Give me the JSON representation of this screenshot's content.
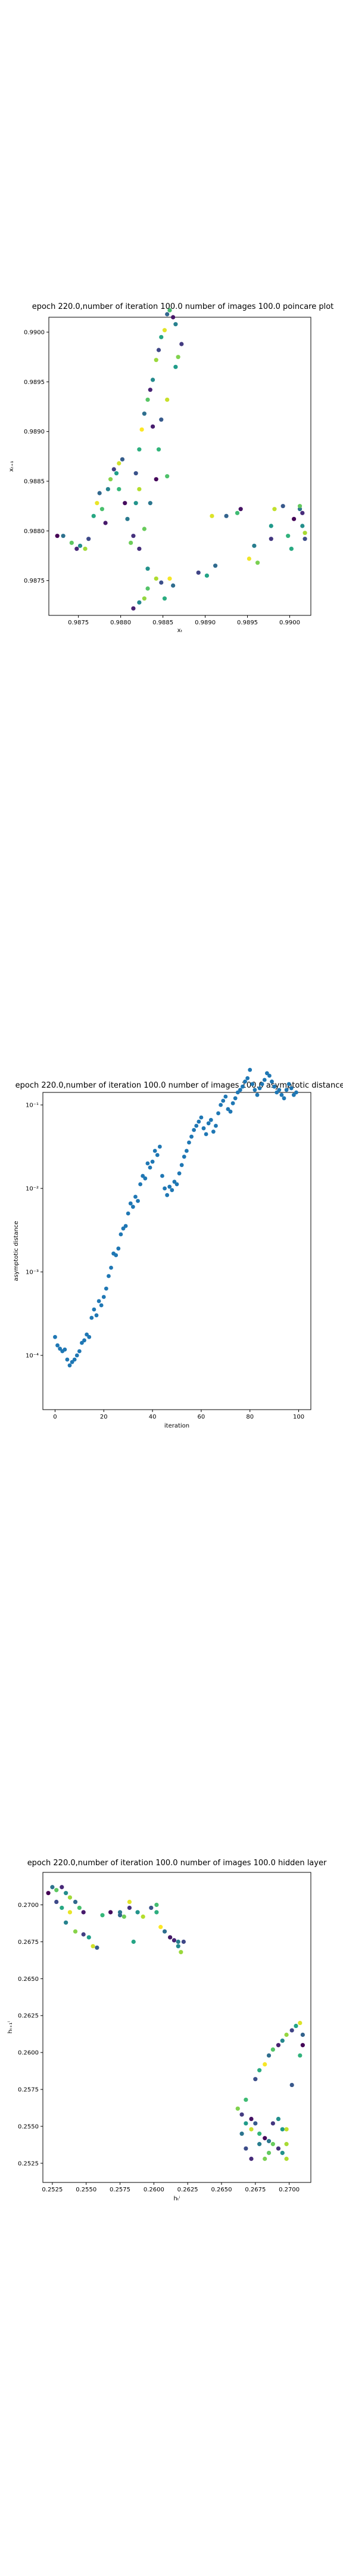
{
  "chart_data": [
    {
      "type": "scatter",
      "title": "epoch 220.0,number of iteration 100.0 number of images 100.0 poincare plot",
      "xlabel": "xₜ",
      "ylabel": "xₜ₊₁",
      "xlim": [
        0.98715,
        0.99025
      ],
      "ylim": [
        0.98715,
        0.99015
      ],
      "xticks": [
        "0.9875",
        "0.9880",
        "0.9885",
        "0.9890",
        "0.9895",
        "0.9900"
      ],
      "yticks": [
        "0.9875",
        "0.9880",
        "0.9885",
        "0.9890",
        "0.9895",
        "0.9900"
      ],
      "color_by": "iteration (viridis)",
      "points": [
        [
          0.98725,
          0.98795
        ],
        [
          0.98732,
          0.98795
        ],
        [
          0.98742,
          0.98788
        ],
        [
          0.98748,
          0.98782
        ],
        [
          0.98752,
          0.98785
        ],
        [
          0.98758,
          0.98782
        ],
        [
          0.98762,
          0.98792
        ],
        [
          0.98768,
          0.98815
        ],
        [
          0.98772,
          0.98828
        ],
        [
          0.98775,
          0.98838
        ],
        [
          0.98778,
          0.98822
        ],
        [
          0.98782,
          0.98808
        ],
        [
          0.98785,
          0.98842
        ],
        [
          0.98788,
          0.98852
        ],
        [
          0.98792,
          0.98862
        ],
        [
          0.98795,
          0.98858
        ],
        [
          0.98798,
          0.98868
        ],
        [
          0.98802,
          0.98872
        ],
        [
          0.98798,
          0.98842
        ],
        [
          0.98805,
          0.98828
        ],
        [
          0.98808,
          0.98812
        ],
        [
          0.98812,
          0.98788
        ],
        [
          0.98815,
          0.98795
        ],
        [
          0.98818,
          0.98828
        ],
        [
          0.98822,
          0.98842
        ],
        [
          0.98818,
          0.98858
        ],
        [
          0.98822,
          0.98882
        ],
        [
          0.98825,
          0.98902
        ],
        [
          0.98828,
          0.98918
        ],
        [
          0.98832,
          0.98932
        ],
        [
          0.98835,
          0.98942
        ],
        [
          0.98838,
          0.98952
        ],
        [
          0.98842,
          0.98972
        ],
        [
          0.98845,
          0.98982
        ],
        [
          0.98848,
          0.98995
        ],
        [
          0.98852,
          0.99002
        ],
        [
          0.98855,
          0.99018
        ],
        [
          0.98858,
          0.99022
        ],
        [
          0.98862,
          0.99015
        ],
        [
          0.98865,
          0.99008
        ],
        [
          0.98868,
          0.98975
        ],
        [
          0.98872,
          0.98988
        ],
        [
          0.98865,
          0.98965
        ],
        [
          0.98855,
          0.98932
        ],
        [
          0.98848,
          0.98912
        ],
        [
          0.98845,
          0.98882
        ],
        [
          0.98842,
          0.98852
        ],
        [
          0.98835,
          0.98828
        ],
        [
          0.98828,
          0.98802
        ],
        [
          0.98822,
          0.98782
        ],
        [
          0.98832,
          0.98762
        ],
        [
          0.98842,
          0.98752
        ],
        [
          0.98848,
          0.98748
        ],
        [
          0.98852,
          0.98732
        ],
        [
          0.98858,
          0.98752
        ],
        [
          0.98862,
          0.98745
        ],
        [
          0.98832,
          0.98742
        ],
        [
          0.98815,
          0.98722
        ],
        [
          0.98822,
          0.98728
        ],
        [
          0.98828,
          0.98732
        ],
        [
          0.98892,
          0.98758
        ],
        [
          0.98902,
          0.98755
        ],
        [
          0.98908,
          0.98815
        ],
        [
          0.98925,
          0.98815
        ],
        [
          0.98938,
          0.98818
        ],
        [
          0.98942,
          0.98822
        ],
        [
          0.98958,
          0.98785
        ],
        [
          0.98962,
          0.98768
        ],
        [
          0.98978,
          0.98792
        ],
        [
          0.98978,
          0.98805
        ],
        [
          0.98982,
          0.98822
        ],
        [
          0.98992,
          0.98825
        ],
        [
          0.98998,
          0.98795
        ],
        [
          0.99005,
          0.98812
        ],
        [
          0.99012,
          0.98822
        ],
        [
          0.99012,
          0.98825
        ],
        [
          0.99015,
          0.98818
        ],
        [
          0.99015,
          0.98805
        ],
        [
          0.99018,
          0.98798
        ],
        [
          0.99018,
          0.98792
        ],
        [
          0.99002,
          0.98782
        ],
        [
          0.98952,
          0.98772
        ],
        [
          0.98912,
          0.98765
        ],
        [
          0.98855,
          0.98855
        ],
        [
          0.98838,
          0.98905
        ]
      ]
    },
    {
      "type": "scatter",
      "title": "epoch 220.0,number of iteration 100.0  number of images 100.0 asymptotic distance",
      "xlabel": "iteration",
      "ylabel": "asymptotic distance",
      "xlim": [
        -5,
        105
      ],
      "yscale": "log",
      "ylim_log10": [
        -4.65,
        -0.85
      ],
      "xticks": [
        "0",
        "20",
        "40",
        "60",
        "80",
        "100"
      ],
      "yticks": [
        "10⁻⁴",
        "10⁻³",
        "10⁻²",
        "10⁻¹"
      ],
      "ytick_values": [
        -4,
        -3,
        -2,
        -1
      ],
      "points": [
        [
          0,
          -3.78
        ],
        [
          1,
          -3.88
        ],
        [
          2,
          -3.92
        ],
        [
          3,
          -3.95
        ],
        [
          4,
          -3.93
        ],
        [
          5,
          -4.05
        ],
        [
          6,
          -4.12
        ],
        [
          7,
          -4.08
        ],
        [
          8,
          -4.05
        ],
        [
          9,
          -4.0
        ],
        [
          10,
          -3.95
        ],
        [
          11,
          -3.85
        ],
        [
          12,
          -3.82
        ],
        [
          13,
          -3.75
        ],
        [
          14,
          -3.78
        ],
        [
          15,
          -3.55
        ],
        [
          16,
          -3.45
        ],
        [
          17,
          -3.52
        ],
        [
          18,
          -3.35
        ],
        [
          19,
          -3.4
        ],
        [
          20,
          -3.3
        ],
        [
          21,
          -3.2
        ],
        [
          22,
          -3.05
        ],
        [
          23,
          -2.95
        ],
        [
          24,
          -2.78
        ],
        [
          25,
          -2.8
        ],
        [
          26,
          -2.72
        ],
        [
          27,
          -2.55
        ],
        [
          28,
          -2.48
        ],
        [
          29,
          -2.45
        ],
        [
          30,
          -2.3
        ],
        [
          31,
          -2.18
        ],
        [
          32,
          -2.22
        ],
        [
          33,
          -2.1
        ],
        [
          34,
          -2.15
        ],
        [
          35,
          -1.95
        ],
        [
          36,
          -1.85
        ],
        [
          37,
          -1.88
        ],
        [
          38,
          -1.7
        ],
        [
          39,
          -1.75
        ],
        [
          40,
          -1.68
        ],
        [
          41,
          -1.55
        ],
        [
          42,
          -1.6
        ],
        [
          43,
          -1.5
        ],
        [
          44,
          -1.85
        ],
        [
          45,
          -2.0
        ],
        [
          46,
          -2.08
        ],
        [
          47,
          -1.98
        ],
        [
          48,
          -2.02
        ],
        [
          49,
          -1.92
        ],
        [
          50,
          -1.95
        ],
        [
          51,
          -1.82
        ],
        [
          52,
          -1.72
        ],
        [
          53,
          -1.62
        ],
        [
          54,
          -1.55
        ],
        [
          55,
          -1.45
        ],
        [
          56,
          -1.38
        ],
        [
          57,
          -1.3
        ],
        [
          58,
          -1.25
        ],
        [
          59,
          -1.2
        ],
        [
          60,
          -1.15
        ],
        [
          61,
          -1.28
        ],
        [
          62,
          -1.35
        ],
        [
          63,
          -1.22
        ],
        [
          64,
          -1.18
        ],
        [
          65,
          -1.32
        ],
        [
          66,
          -1.25
        ],
        [
          67,
          -1.1
        ],
        [
          68,
          -1.0
        ],
        [
          69,
          -0.95
        ],
        [
          70,
          -0.9
        ],
        [
          71,
          -1.05
        ],
        [
          72,
          -1.08
        ],
        [
          73,
          -0.98
        ],
        [
          74,
          -0.92
        ],
        [
          75,
          -0.85
        ],
        [
          76,
          -0.82
        ],
        [
          77,
          -0.78
        ],
        [
          78,
          -0.72
        ],
        [
          79,
          -0.68
        ],
        [
          80,
          -0.58
        ],
        [
          81,
          -0.75
        ],
        [
          82,
          -0.82
        ],
        [
          83,
          -0.88
        ],
        [
          84,
          -0.8
        ],
        [
          85,
          -0.75
        ],
        [
          86,
          -0.7
        ],
        [
          87,
          -0.62
        ],
        [
          88,
          -0.65
        ],
        [
          89,
          -0.72
        ],
        [
          90,
          -0.78
        ],
        [
          91,
          -0.85
        ],
        [
          92,
          -0.82
        ],
        [
          93,
          -0.88
        ],
        [
          94,
          -0.92
        ],
        [
          95,
          -0.82
        ],
        [
          96,
          -0.75
        ],
        [
          97,
          -0.8
        ],
        [
          98,
          -0.88
        ],
        [
          99,
          -0.85
        ]
      ]
    },
    {
      "type": "scatter",
      "title": "epoch 220.0,number of iteration 100.0  number of images 100.0 hidden layer",
      "xlabel": "hₜⁱ",
      "ylabel": "hₜ₊₁ⁱ",
      "xlim": [
        0.2518,
        0.2716
      ],
      "ylim": [
        0.2512,
        0.2722
      ],
      "xticks": [
        "0.2525",
        "0.2550",
        "0.2575",
        "0.2600",
        "0.2625",
        "0.2650",
        "0.2675",
        "0.2700"
      ],
      "xtick_values": [
        0.2525,
        0.255,
        0.2575,
        0.26,
        0.2625,
        0.265,
        0.2675,
        0.27
      ],
      "yticks": [
        "0.2525",
        "0.2550",
        "0.2575",
        "0.2600",
        "0.2625",
        "0.2650",
        "0.2675",
        "0.2700"
      ],
      "ytick_values": [
        0.2525,
        0.255,
        0.2575,
        0.26,
        0.2625,
        0.265,
        0.2675,
        0.27
      ],
      "color_by": "iteration (viridis)",
      "points": [
        [
          0.2522,
          0.2708
        ],
        [
          0.2525,
          0.2712
        ],
        [
          0.2528,
          0.271
        ],
        [
          0.2532,
          0.2712
        ],
        [
          0.2535,
          0.2708
        ],
        [
          0.2538,
          0.2705
        ],
        [
          0.2528,
          0.2702
        ],
        [
          0.2532,
          0.2698
        ],
        [
          0.2538,
          0.2695
        ],
        [
          0.2542,
          0.2702
        ],
        [
          0.2545,
          0.2698
        ],
        [
          0.2548,
          0.2695
        ],
        [
          0.2535,
          0.2688
        ],
        [
          0.2542,
          0.2682
        ],
        [
          0.2548,
          0.268
        ],
        [
          0.2552,
          0.2678
        ],
        [
          0.2555,
          0.2672
        ],
        [
          0.2558,
          0.2671
        ],
        [
          0.2562,
          0.2693
        ],
        [
          0.2568,
          0.2695
        ],
        [
          0.2575,
          0.2695
        ],
        [
          0.2578,
          0.2692
        ],
        [
          0.2582,
          0.2698
        ],
        [
          0.2588,
          0.2695
        ],
        [
          0.2592,
          0.2692
        ],
        [
          0.2598,
          0.2698
        ],
        [
          0.2602,
          0.2695
        ],
        [
          0.2605,
          0.2685
        ],
        [
          0.2608,
          0.2682
        ],
        [
          0.2612,
          0.2678
        ],
        [
          0.2615,
          0.2676
        ],
        [
          0.2618,
          0.2672
        ],
        [
          0.262,
          0.2668
        ],
        [
          0.2622,
          0.2675
        ],
        [
          0.2585,
          0.2675
        ],
        [
          0.2582,
          0.2702
        ],
        [
          0.2575,
          0.2693
        ],
        [
          0.2602,
          0.27
        ],
        [
          0.2612,
          0.2678
        ],
        [
          0.2618,
          0.2675
        ],
        [
          0.2662,
          0.2562
        ],
        [
          0.2665,
          0.2558
        ],
        [
          0.2668,
          0.2552
        ],
        [
          0.2672,
          0.2548
        ],
        [
          0.2675,
          0.2552
        ],
        [
          0.2678,
          0.2545
        ],
        [
          0.2682,
          0.2542
        ],
        [
          0.2685,
          0.254
        ],
        [
          0.2688,
          0.2538
        ],
        [
          0.2692,
          0.2535
        ],
        [
          0.2695,
          0.2532
        ],
        [
          0.2698,
          0.2528
        ],
        [
          0.2675,
          0.2582
        ],
        [
          0.2678,
          0.2588
        ],
        [
          0.2682,
          0.2592
        ],
        [
          0.2685,
          0.2598
        ],
        [
          0.2688,
          0.2602
        ],
        [
          0.2692,
          0.2605
        ],
        [
          0.2695,
          0.2608
        ],
        [
          0.2698,
          0.2612
        ],
        [
          0.2702,
          0.2615
        ],
        [
          0.2705,
          0.2618
        ],
        [
          0.2708,
          0.262
        ],
        [
          0.271,
          0.2612
        ],
        [
          0.2668,
          0.2568
        ],
        [
          0.2672,
          0.2555
        ],
        [
          0.2678,
          0.2538
        ],
        [
          0.2682,
          0.2528
        ],
        [
          0.2688,
          0.2552
        ],
        [
          0.2695,
          0.2548
        ],
        [
          0.2698,
          0.2548
        ],
        [
          0.2702,
          0.2578
        ],
        [
          0.2708,
          0.2598
        ],
        [
          0.271,
          0.2605
        ],
        [
          0.2665,
          0.2545
        ],
        [
          0.2685,
          0.2532
        ],
        [
          0.2672,
          0.2528
        ],
        [
          0.2692,
          0.2555
        ],
        [
          0.2698,
          0.2538
        ],
        [
          0.2668,
          0.2535
        ]
      ]
    }
  ]
}
